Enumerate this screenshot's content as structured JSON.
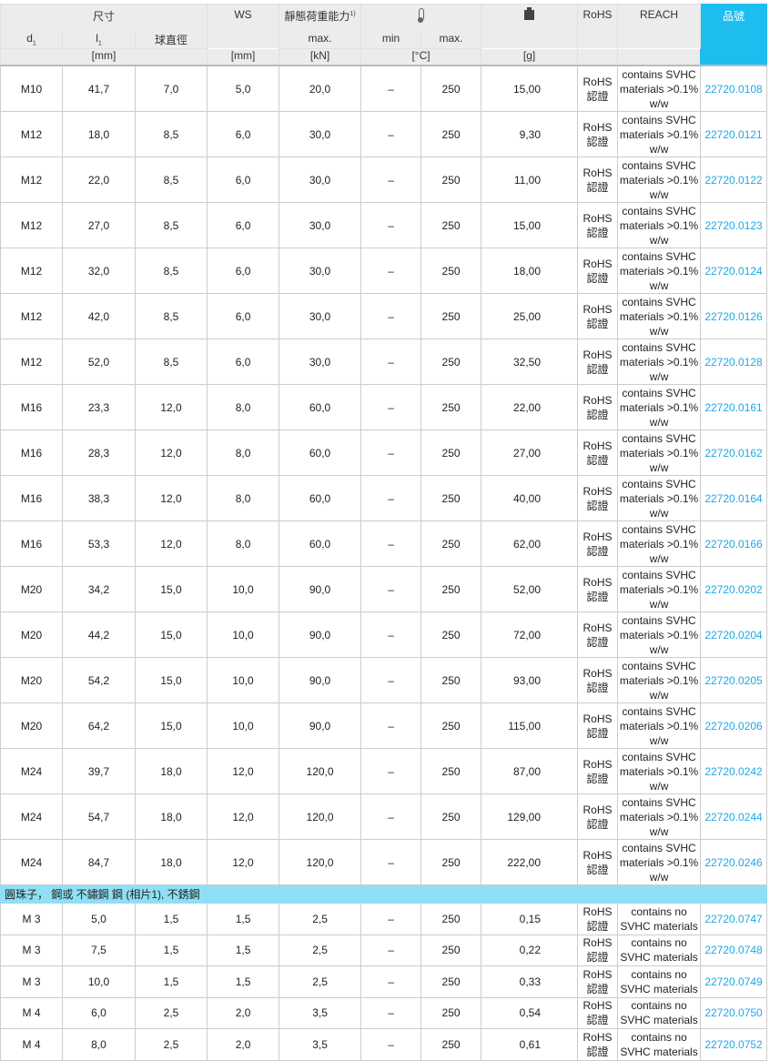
{
  "header": {
    "dimensions": "尺寸",
    "d1": "d",
    "d1_sub": "1",
    "l1": "l",
    "l1_sub": "1",
    "ball_dia": "球直徑",
    "ws": "WS",
    "load": "靜態荷重能力",
    "load_sup": "1)",
    "load_max": "max.",
    "temp_min": "min",
    "temp_max": "max.",
    "rohs": "RoHS",
    "reach": "REACH",
    "part_no": "品號",
    "unit_mm": "[mm]",
    "unit_ws": "[mm]",
    "unit_kn": "[kN]",
    "unit_c": "[°C]",
    "unit_g": "[g]",
    "temp_icon": "thermometer-icon",
    "weight_icon": "weight-icon"
  },
  "colors": {
    "header_accent": "#1ebdf0",
    "link": "#1ea8e6",
    "section": "#8fdff5"
  },
  "rows1": [
    [
      "M10",
      "41,7",
      "7,0",
      "5,0",
      "20,0",
      "–",
      "250",
      "15,00",
      "RoHS 認證",
      "contains SVHC materials >0.1% w/w",
      "22720.0108"
    ],
    [
      "M12",
      "18,0",
      "8,5",
      "6,0",
      "30,0",
      "–",
      "250",
      "9,30",
      "RoHS 認證",
      "contains SVHC materials >0.1% w/w",
      "22720.0121"
    ],
    [
      "M12",
      "22,0",
      "8,5",
      "6,0",
      "30,0",
      "–",
      "250",
      "11,00",
      "RoHS 認證",
      "contains SVHC materials >0.1% w/w",
      "22720.0122"
    ],
    [
      "M12",
      "27,0",
      "8,5",
      "6,0",
      "30,0",
      "–",
      "250",
      "15,00",
      "RoHS 認證",
      "contains SVHC materials >0.1% w/w",
      "22720.0123"
    ],
    [
      "M12",
      "32,0",
      "8,5",
      "6,0",
      "30,0",
      "–",
      "250",
      "18,00",
      "RoHS 認證",
      "contains SVHC materials >0.1% w/w",
      "22720.0124"
    ],
    [
      "M12",
      "42,0",
      "8,5",
      "6,0",
      "30,0",
      "–",
      "250",
      "25,00",
      "RoHS 認證",
      "contains SVHC materials >0.1% w/w",
      "22720.0126"
    ],
    [
      "M12",
      "52,0",
      "8,5",
      "6,0",
      "30,0",
      "–",
      "250",
      "32,50",
      "RoHS 認證",
      "contains SVHC materials >0.1% w/w",
      "22720.0128"
    ],
    [
      "M16",
      "23,3",
      "12,0",
      "8,0",
      "60,0",
      "–",
      "250",
      "22,00",
      "RoHS 認證",
      "contains SVHC materials >0.1% w/w",
      "22720.0161"
    ],
    [
      "M16",
      "28,3",
      "12,0",
      "8,0",
      "60,0",
      "–",
      "250",
      "27,00",
      "RoHS 認證",
      "contains SVHC materials >0.1% w/w",
      "22720.0162"
    ],
    [
      "M16",
      "38,3",
      "12,0",
      "8,0",
      "60,0",
      "–",
      "250",
      "40,00",
      "RoHS 認證",
      "contains SVHC materials >0.1% w/w",
      "22720.0164"
    ],
    [
      "M16",
      "53,3",
      "12,0",
      "8,0",
      "60,0",
      "–",
      "250",
      "62,00",
      "RoHS 認證",
      "contains SVHC materials >0.1% w/w",
      "22720.0166"
    ],
    [
      "M20",
      "34,2",
      "15,0",
      "10,0",
      "90,0",
      "–",
      "250",
      "52,00",
      "RoHS 認證",
      "contains SVHC materials >0.1% w/w",
      "22720.0202"
    ],
    [
      "M20",
      "44,2",
      "15,0",
      "10,0",
      "90,0",
      "–",
      "250",
      "72,00",
      "RoHS 認證",
      "contains SVHC materials >0.1% w/w",
      "22720.0204"
    ],
    [
      "M20",
      "54,2",
      "15,0",
      "10,0",
      "90,0",
      "–",
      "250",
      "93,00",
      "RoHS 認證",
      "contains SVHC materials >0.1% w/w",
      "22720.0205"
    ],
    [
      "M20",
      "64,2",
      "15,0",
      "10,0",
      "90,0",
      "–",
      "250",
      "115,00",
      "RoHS 認證",
      "contains SVHC materials >0.1% w/w",
      "22720.0206"
    ],
    [
      "M24",
      "39,7",
      "18,0",
      "12,0",
      "120,0",
      "–",
      "250",
      "87,00",
      "RoHS 認證",
      "contains SVHC materials >0.1% w/w",
      "22720.0242"
    ],
    [
      "M24",
      "54,7",
      "18,0",
      "12,0",
      "120,0",
      "–",
      "250",
      "129,00",
      "RoHS 認證",
      "contains SVHC materials >0.1% w/w",
      "22720.0244"
    ],
    [
      "M24",
      "84,7",
      "18,0",
      "12,0",
      "120,0",
      "–",
      "250",
      "222,00",
      "RoHS 認證",
      "contains SVHC materials >0.1% w/w",
      "22720.0246"
    ]
  ],
  "section_title": "圓珠子， 鋼或 不鏽鋼 鋼 (相片1), 不銹鋼",
  "rows2": [
    [
      "M 3",
      "5,0",
      "1,5",
      "1,5",
      "2,5",
      "–",
      "250",
      "0,15",
      "RoHS 認證",
      "contains no SVHC materials",
      "22720.0747"
    ],
    [
      "M 3",
      "7,5",
      "1,5",
      "1,5",
      "2,5",
      "–",
      "250",
      "0,22",
      "RoHS 認證",
      "contains no SVHC materials",
      "22720.0748"
    ],
    [
      "M 3",
      "10,0",
      "1,5",
      "1,5",
      "2,5",
      "–",
      "250",
      "0,33",
      "RoHS 認證",
      "contains no SVHC materials",
      "22720.0749"
    ],
    [
      "M 4",
      "6,0",
      "2,5",
      "2,0",
      "3,5",
      "–",
      "250",
      "0,54",
      "RoHS 認證",
      "contains no SVHC materials",
      "22720.0750"
    ],
    [
      "M 4",
      "8,0",
      "2,5",
      "2,0",
      "3,5",
      "–",
      "250",
      "0,61",
      "RoHS 認證",
      "contains no SVHC materials",
      "22720.0752"
    ]
  ]
}
